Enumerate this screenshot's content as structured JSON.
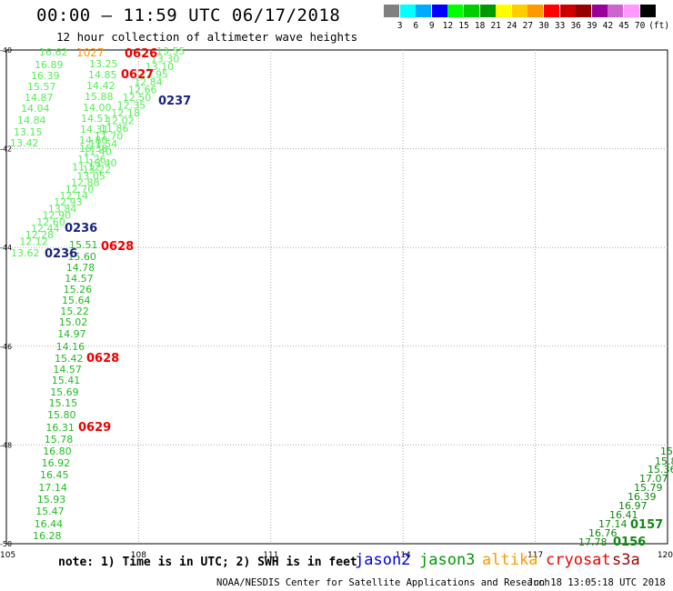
{
  "header": {
    "title": "00:00 – 11:59 UTC 06/17/2018",
    "subtitle": "12 hour collection of altimeter wave heights"
  },
  "colorbar": {
    "colors": [
      "#808080",
      "#00ffff",
      "#00aaff",
      "#0000ff",
      "#00ff00",
      "#00cc00",
      "#009900",
      "#ffff00",
      "#ffcc00",
      "#ff9900",
      "#ff0000",
      "#cc0000",
      "#990000",
      "#990099",
      "#cc66cc",
      "#ff99ff",
      "#000000"
    ],
    "labels": [
      "3",
      "6",
      "9",
      "12",
      "15",
      "18",
      "21",
      "24",
      "27",
      "30",
      "33",
      "36",
      "39",
      "42",
      "45",
      "70"
    ],
    "unit": "(ft)"
  },
  "map": {
    "lon_ticks": [
      "105",
      "108",
      "111",
      "114",
      "117",
      "120"
    ],
    "lat_ticks": [
      "-40",
      "-42",
      "-44",
      "-46",
      "-48",
      "-50"
    ]
  },
  "colors": {
    "light_green": "#55ee55",
    "green": "#22bb22",
    "dark_green": "#118811",
    "red": "#ee0000",
    "orange": "#ff9900",
    "navy": "#1a237e",
    "gridline": "#aaaaaa"
  },
  "swh_labels": {
    "jason3_upper_col": [
      "16.62",
      "16.89",
      "16.39",
      "15.57",
      "14.87",
      "14.04",
      "14.84",
      "13.15",
      "13.42"
    ],
    "jason3_mid_col": [
      "13.25",
      "14.85",
      "14.42",
      "15.88",
      "14.00",
      "14.51",
      "14.31",
      "14.80",
      "15.38"
    ],
    "jason3_ascending_right": [
      "13.55",
      "13.30",
      "13.10",
      "12.95",
      "12.84",
      "12.66",
      "12.50",
      "12.35",
      "12.18",
      "12.02",
      "11.86",
      "11.70",
      "11.54",
      "11.40",
      "11.26",
      "11.12"
    ],
    "jason3_ascending_left": [
      "13.40",
      "13.22",
      "13.05",
      "12.88",
      "12.70",
      "12.14",
      "12.93",
      "13.84",
      "12.90",
      "12.60",
      "12.44",
      "12.28",
      "12.12",
      "13.62"
    ],
    "jason3_lower_col": [
      "15.51",
      "15.60",
      "14.78",
      "14.57",
      "15.26",
      "15.64",
      "15.22",
      "15.02",
      "14.97",
      "14.16",
      "15.42",
      "14.57",
      "15.41",
      "15.69",
      "15.15",
      "15.80",
      "16.31",
      "15.78",
      "16.80",
      "16.92",
      "16.45",
      "17.14",
      "15.93",
      "15.47",
      "16.44",
      "16.28"
    ],
    "jason3_southeast": [
      "15",
      "15.8",
      "15.36",
      "17.07",
      "15.79",
      "16.39",
      "16.97",
      "16.41",
      "17.14",
      "16.76",
      "17.78"
    ],
    "altika": [
      "1027"
    ]
  },
  "pass_times": {
    "cryosat": [
      "0626",
      "0627",
      "0628",
      "0628",
      "0629"
    ],
    "jason2": [
      "0237",
      "0236",
      "0236"
    ],
    "s3a": [
      "0157",
      "0156"
    ]
  },
  "legend": {
    "note": "note: 1) Time is in UTC; 2) SWH is in feet",
    "jason2": "jason2",
    "jason3": "jason3",
    "altika": "altika",
    "cryosat": "cryosat",
    "s3a": "s3a"
  },
  "footer": {
    "credit": "NOAA/NESDIS Center for Satellite Applications and Research",
    "timestamp": "Jun 18 13:05:18 UTC 2018"
  }
}
